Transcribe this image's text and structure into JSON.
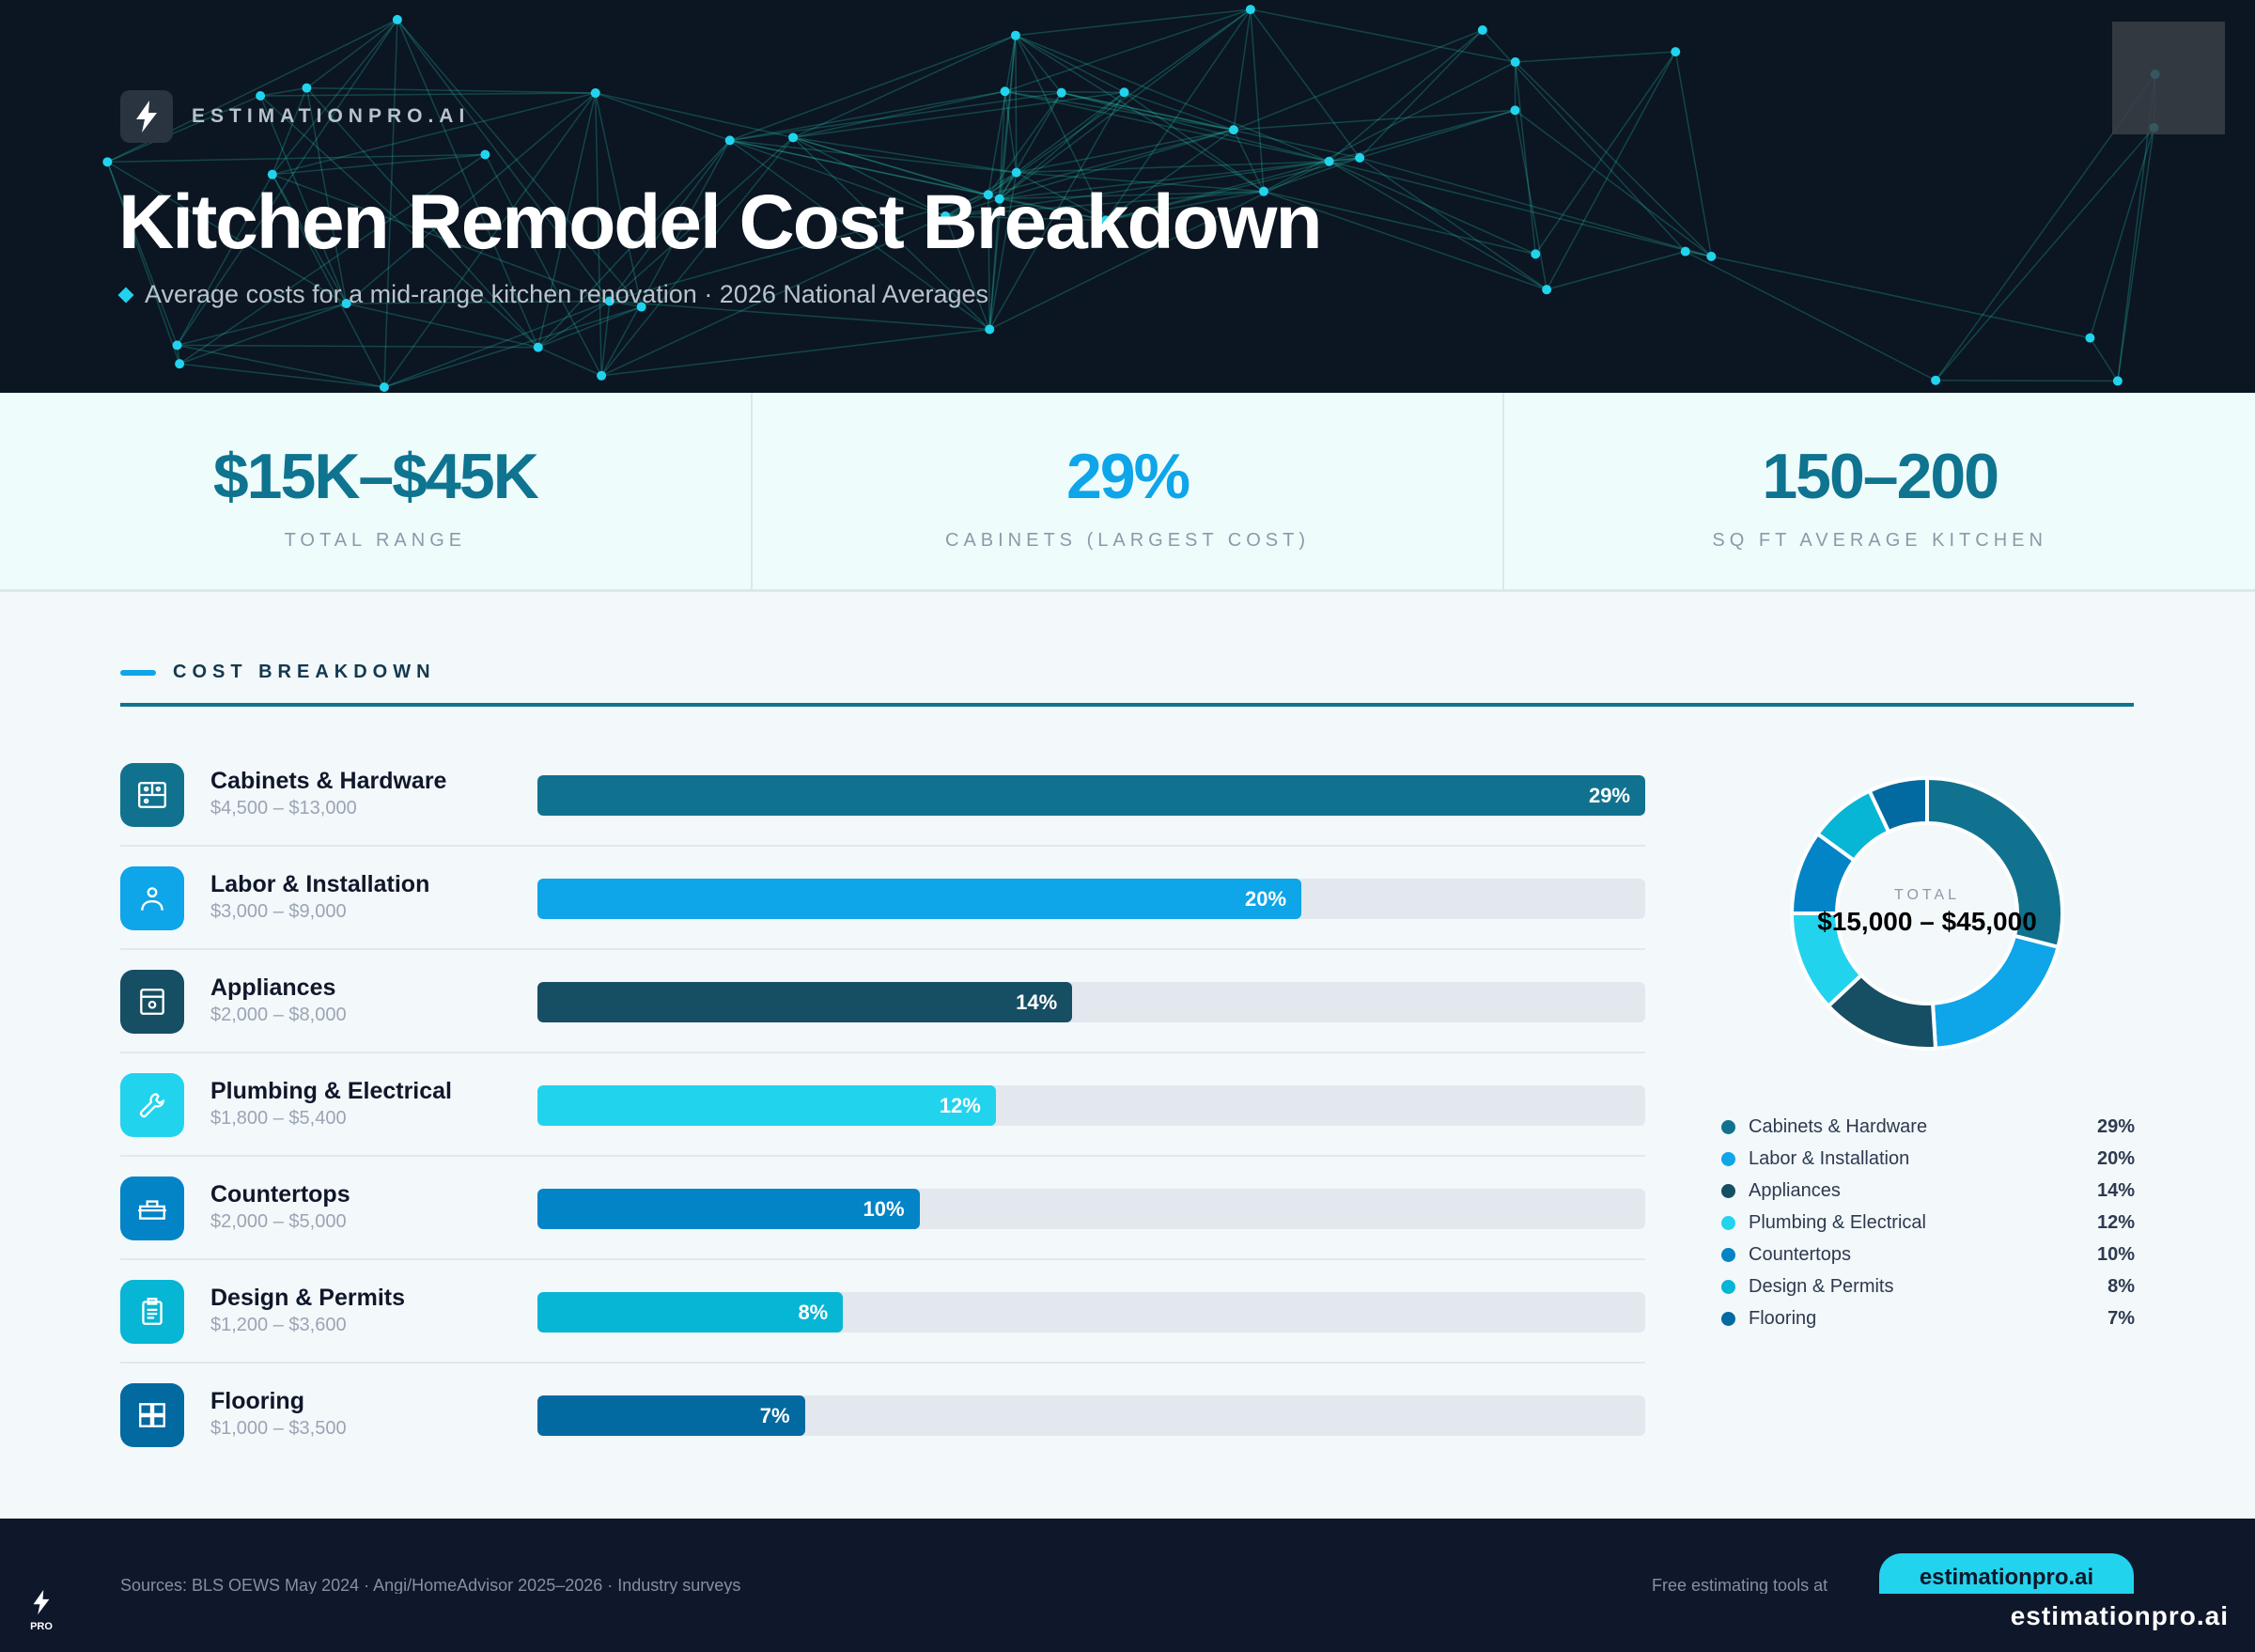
{
  "header": {
    "brand": "ESTIMATIONPRO.AI",
    "title": "Kitchen Remodel Cost Breakdown",
    "subtitle": "Average costs for a mid-range kitchen renovation · 2026 National Averages",
    "logo_icon": "lightning-bolt-icon"
  },
  "stats": [
    {
      "value": "$15K–$45K",
      "label": "TOTAL RANGE",
      "color": "#0e7490"
    },
    {
      "value": "29%",
      "label": "CABINETS (LARGEST COST)",
      "color": "#0ea5e9"
    },
    {
      "value": "150–200",
      "label": "SQ FT AVERAGE KITCHEN",
      "color": "#0e7490"
    }
  ],
  "section_title": "COST BREAKDOWN",
  "chart_data": {
    "type": "bar",
    "categories": [
      "Cabinets & Hardware",
      "Labor & Installation",
      "Appliances",
      "Plumbing & Electrical",
      "Countertops",
      "Design & Permits",
      "Flooring"
    ],
    "values": [
      29,
      20,
      14,
      12,
      10,
      8,
      7
    ],
    "labels": [
      "29%",
      "20%",
      "14%",
      "12%",
      "10%",
      "8%",
      "7%"
    ],
    "ranges": [
      "$4,500 – $13,000",
      "$3,000 – $9,000",
      "$2,000 – $8,000",
      "$1,800 – $5,400",
      "$2,000 – $5,000",
      "$1,200 – $3,600",
      "$1,000 – $3,500"
    ],
    "colors": [
      "#11728f",
      "#0ea5e9",
      "#164e63",
      "#22d3ee",
      "#0284c7",
      "#06b6d4",
      "#0369a1"
    ],
    "icons": [
      "cabinet-icon",
      "worker-icon",
      "oven-icon",
      "wrench-icon",
      "toolbox-icon",
      "clipboard-icon",
      "grid-tiles-icon"
    ],
    "donut": {
      "type": "pie",
      "total_label": "TOTAL",
      "total_value": "$15,000 – $45,000"
    }
  },
  "footer": {
    "sources": "Sources: BLS OEWS May 2024 · Angi/HomeAdvisor 2025–2026 · Industry surveys",
    "free_tools": "Free estimating tools at",
    "button": "estimationpro.ai",
    "site": "estimationpro.ai",
    "logo_text": "PRO"
  }
}
